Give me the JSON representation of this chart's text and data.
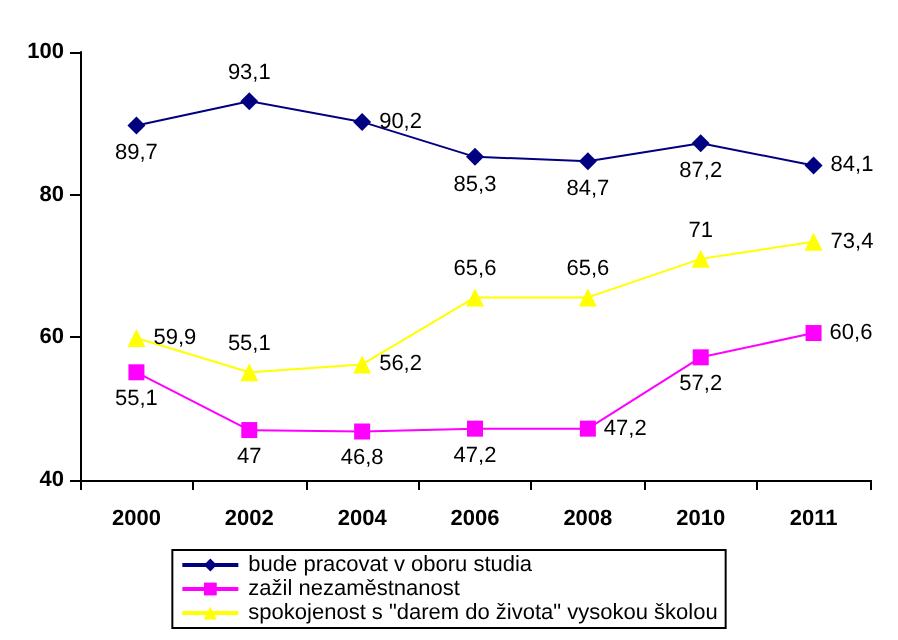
{
  "chart_data": {
    "type": "line",
    "categories": [
      "2000",
      "2002",
      "2004",
      "2006",
      "2008",
      "2010",
      "2011"
    ],
    "series": [
      {
        "name": "bude pracovat v oboru studia",
        "color": "#000080",
        "marker": "diamond",
        "values": [
          89.7,
          93.1,
          90.2,
          85.3,
          84.7,
          87.2,
          84.1
        ],
        "value_labels": [
          "89,7",
          "93,1",
          "90,2",
          "85,3",
          "84,7",
          "87,2",
          "84,1"
        ]
      },
      {
        "name": "zažil nezaměstnanost",
        "color": "#ff00ff",
        "marker": "square",
        "values": [
          55.1,
          47,
          46.8,
          47.2,
          47.2,
          57.2,
          60.6
        ],
        "value_labels": [
          "55,1",
          "47",
          "46,8",
          "47,2",
          "47,2",
          "57,2",
          "60,6"
        ]
      },
      {
        "name": "spokojenost s \"darem do života\" vysokou školou",
        "color": "#ffff00",
        "marker": "triangle",
        "values": [
          59.9,
          55.1,
          56.2,
          65.6,
          65.6,
          71,
          73.4
        ],
        "value_labels": [
          "59,9",
          "55,1",
          "56,2",
          "65,6",
          "65,6",
          "71",
          "73,4"
        ]
      }
    ],
    "ylim": [
      40,
      100
    ],
    "yticks": [
      40,
      60,
      80,
      100
    ],
    "grid": false,
    "legend": "bottom",
    "line_style": "solid"
  }
}
